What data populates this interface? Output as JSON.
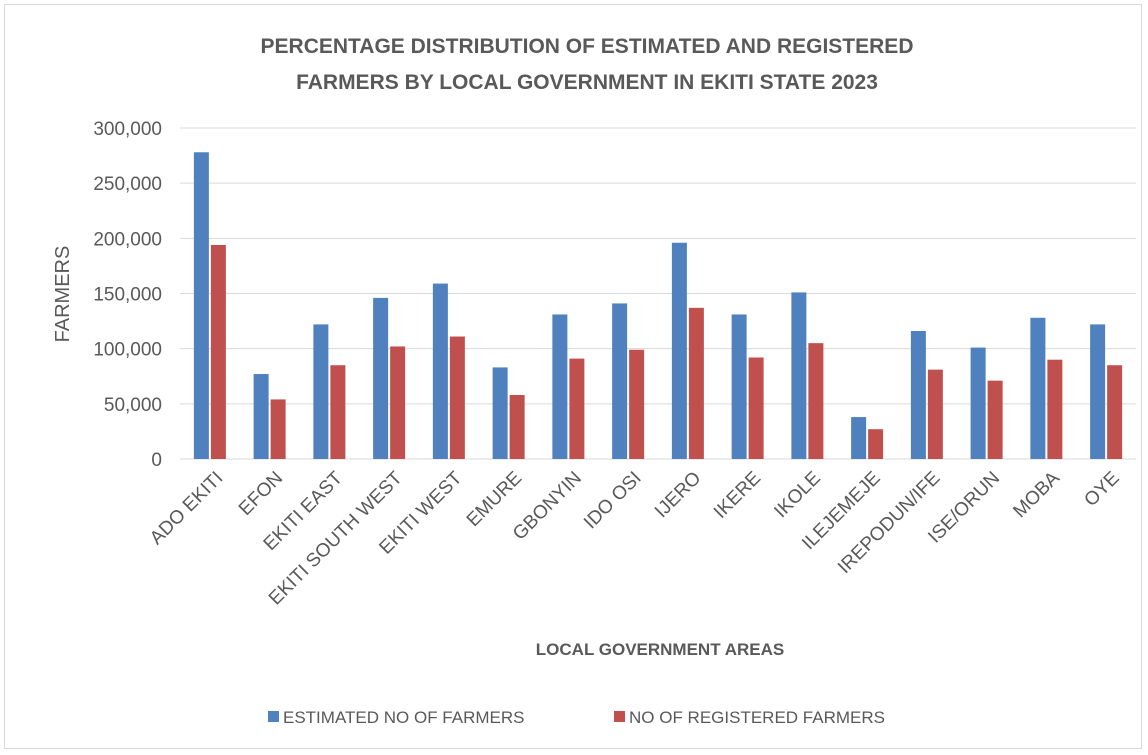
{
  "chart_data": {
    "type": "bar",
    "title_lines": [
      "PERCENTAGE DISTRIBUTION OF ESTIMATED AND REGISTERED",
      "FARMERS BY LOCAL GOVERNMENT IN EKITI STATE 2023"
    ],
    "xlabel": "LOCAL GOVERNMENT AREAS",
    "ylabel": "FARMERS",
    "ylim": [
      0,
      300000
    ],
    "yticks": [
      0,
      50000,
      100000,
      150000,
      200000,
      250000,
      300000
    ],
    "ytick_labels": [
      "0",
      "50,000",
      "100,000",
      "150,000",
      "200,000",
      "250,000",
      "300,000"
    ],
    "grid": true,
    "legend_position": "bottom",
    "categories": [
      "ADO EKITI",
      "EFON",
      "EKITI EAST",
      "EKITI SOUTH WEST",
      "EKITI WEST",
      "EMURE",
      "GBONYIN",
      "IDO OSI",
      "IJERO",
      "IKERE",
      "IKOLE",
      "ILEJEMEJE",
      "IREPODUN/IFE",
      "ISE/ORUN",
      "MOBA",
      "OYE"
    ],
    "series": [
      {
        "name": "ESTIMATED NO OF FARMERS",
        "color": "#4e81bd",
        "values": [
          278000,
          77000,
          122000,
          146000,
          159000,
          83000,
          131000,
          141000,
          196000,
          131000,
          151000,
          38000,
          116000,
          101000,
          128000,
          122000
        ]
      },
      {
        "name": "NO OF REGISTERED FARMERS",
        "color": "#c0504d",
        "values": [
          194000,
          54000,
          85000,
          102000,
          111000,
          58000,
          91000,
          99000,
          137000,
          92000,
          105000,
          27000,
          81000,
          71000,
          90000,
          85000
        ]
      }
    ]
  }
}
